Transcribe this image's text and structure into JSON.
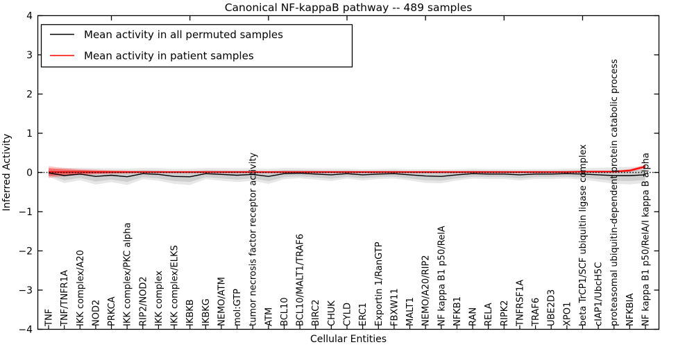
{
  "title": "Canonical NF-kappaB pathway -- 489 samples",
  "axes": {
    "ylabel": "Inferred Activity",
    "xlabel": "Cellular Entities",
    "yticks": [
      4,
      3,
      2,
      1,
      0,
      -1,
      -2,
      -3,
      -4
    ],
    "ylim": [
      -4,
      4
    ]
  },
  "legend": {
    "items": [
      {
        "label": "Mean activity in all permuted samples",
        "color": "#000000"
      },
      {
        "label": "Mean activity in patient samples",
        "color": "#ff0000"
      }
    ],
    "position": "upper left"
  },
  "colors": {
    "permuted_line": "#000000",
    "patient_line": "#ff0000",
    "permuted_band": "#a0a0a0",
    "patient_band": "#ff0000",
    "zero_line": "#000000",
    "axis": "#000000",
    "background": "#ffffff"
  },
  "chart_data": {
    "type": "line",
    "title": "Canonical NF-kappaB pathway -- 489 samples",
    "xlabel": "Cellular Entities",
    "ylabel": "Inferred Activity",
    "ylim": [
      -4,
      4
    ],
    "yticks": [
      -4,
      -3,
      -2,
      -1,
      0,
      1,
      2,
      3,
      4
    ],
    "grid": false,
    "legend_position": "upper left",
    "zero_reference_line": {
      "y": 0,
      "style": "dotted",
      "color": "#000000"
    },
    "categories": [
      "TNF",
      "TNF/TNFR1A",
      "IKK complex/A20",
      "NOD2",
      "PRKCA",
      "IKK complex/PKC alpha",
      "RIP2/NOD2",
      "IKK complex",
      "IKK complex/ELKS",
      "IKBKB",
      "IKBKG",
      "NEMO/ATM",
      "mol:GTP",
      "tumor necrosis factor receptor activity",
      "ATM",
      "BCL10",
      "BCL10/MALT1/TRAF6",
      "BIRC2",
      "CHUK",
      "CYLD",
      "ERC1",
      "Exportin 1/RanGTP",
      "FBXW11",
      "MALT1",
      "NEMO/A20/RIP2",
      "NF kappa B1 p50/RelA",
      "NFKB1",
      "RAN",
      "RELA",
      "RIPK2",
      "TNFRSF1A",
      "TRAF6",
      "UBE2D3",
      "XPO1",
      "beta TrCP1/SCF ubiquitin ligase complex",
      "cIAP1/UbcH5C",
      "proteasomal ubiquitin-dependent protein catabolic process",
      "NFKBIA",
      "NF kappa B1 p50/RelA/I kappa B alpha"
    ],
    "series": [
      {
        "name": "Mean activity in all permuted samples",
        "color": "#000000",
        "values": [
          -0.01,
          -0.08,
          -0.04,
          -0.1,
          -0.07,
          -0.11,
          -0.03,
          -0.05,
          -0.1,
          -0.11,
          -0.03,
          -0.05,
          -0.07,
          -0.05,
          -0.1,
          -0.03,
          -0.02,
          -0.04,
          -0.06,
          -0.03,
          -0.06,
          -0.04,
          -0.03,
          -0.06,
          -0.09,
          -0.1,
          -0.06,
          -0.03,
          -0.04,
          -0.04,
          -0.06,
          -0.04,
          -0.04,
          -0.03,
          -0.04,
          -0.06,
          -0.08,
          -0.08,
          -0.06
        ],
        "band_halfwidth": [
          0.06,
          0.12,
          0.1,
          0.13,
          0.11,
          0.13,
          0.09,
          0.1,
          0.12,
          0.13,
          0.09,
          0.1,
          0.11,
          0.1,
          0.12,
          0.09,
          0.08,
          0.09,
          0.1,
          0.08,
          0.09,
          0.08,
          0.08,
          0.09,
          0.11,
          0.11,
          0.09,
          0.08,
          0.08,
          0.08,
          0.09,
          0.08,
          0.08,
          0.08,
          0.09,
          0.11,
          0.13,
          0.14,
          0.13
        ]
      },
      {
        "name": "Mean activity in patient samples",
        "color": "#ff0000",
        "values": [
          0.01,
          0.01,
          0.01,
          0.01,
          0.01,
          0.01,
          0.01,
          0.01,
          0.01,
          0.01,
          0.01,
          0.01,
          0.01,
          0.01,
          0.01,
          0.01,
          0.01,
          0.01,
          0.01,
          0.01,
          0.01,
          0.01,
          0.01,
          0.01,
          0.01,
          0.01,
          0.01,
          0.01,
          0.01,
          0.01,
          0.01,
          0.01,
          0.01,
          0.01,
          0.02,
          0.02,
          0.02,
          0.05,
          0.15
        ],
        "band_halfwidth": [
          0.1,
          0.07,
          0.05,
          0.04,
          0.03,
          0.025,
          0.02,
          0.02,
          0.02,
          0.02,
          0.02,
          0.02,
          0.02,
          0.02,
          0.02,
          0.02,
          0.02,
          0.02,
          0.02,
          0.02,
          0.02,
          0.02,
          0.02,
          0.02,
          0.02,
          0.02,
          0.02,
          0.02,
          0.02,
          0.02,
          0.02,
          0.02,
          0.02,
          0.02,
          0.02,
          0.02,
          0.02,
          0.025,
          0.03
        ]
      }
    ]
  }
}
